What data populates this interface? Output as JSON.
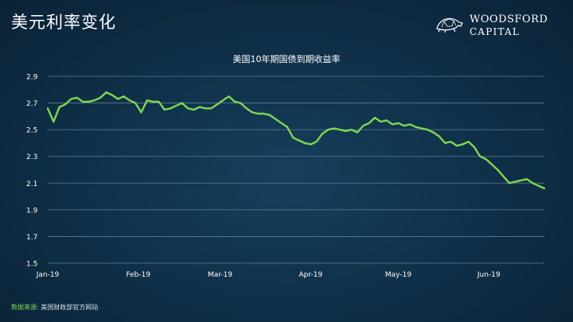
{
  "header": {
    "title": "美元利率变化"
  },
  "logo": {
    "name": "WOODSFORD",
    "sub": "CAPITAL"
  },
  "footer": {
    "source_label": "数据来源:",
    "source_text": "美国财政部官方网站"
  },
  "colors": {
    "line": "#7ed84e",
    "grid": "#5f7d92",
    "text": "#ffffff"
  },
  "chart_data": {
    "type": "line",
    "title": "美国10年期国债到期收益率",
    "xlabel": "",
    "ylabel": "",
    "ylim": [
      1.5,
      2.9
    ],
    "yticks": [
      "2.9",
      "2.7",
      "2.5",
      "2.3",
      "2.1",
      "1.9",
      "1.7",
      "1.5"
    ],
    "ytick_values": [
      2.9,
      2.7,
      2.5,
      2.3,
      2.1,
      1.9,
      1.7,
      1.5
    ],
    "xticks": [
      "Jan-19",
      "Feb-19",
      "Mar-19",
      "Apr-19",
      "May-19",
      "Jun-19"
    ],
    "xtick_positions": [
      0,
      31,
      59,
      90,
      120,
      151
    ],
    "xlim": [
      0,
      170
    ],
    "grid": true,
    "legend": "none",
    "series": [
      {
        "x": [
          0,
          2,
          4,
          6,
          8,
          10,
          12,
          14,
          16,
          18,
          20,
          22,
          24,
          26,
          28,
          30,
          32,
          34,
          36,
          38,
          40,
          42,
          44,
          46,
          48,
          50,
          52,
          54,
          56,
          58,
          60,
          62,
          64,
          66,
          68,
          70,
          72,
          74,
          76,
          78,
          80,
          82,
          84,
          86,
          88,
          90,
          92,
          94,
          96,
          98,
          100,
          102,
          104,
          106,
          108,
          110,
          112,
          114,
          116,
          118,
          120,
          122,
          124,
          126,
          128,
          130,
          132,
          134,
          136,
          138,
          140,
          142,
          144,
          146,
          148,
          150,
          152,
          154,
          156,
          158,
          160,
          162,
          164,
          166,
          168,
          170
        ],
        "values": [
          2.66,
          2.56,
          2.67,
          2.69,
          2.73,
          2.74,
          2.71,
          2.71,
          2.72,
          2.74,
          2.78,
          2.76,
          2.73,
          2.75,
          2.72,
          2.7,
          2.63,
          2.72,
          2.71,
          2.71,
          2.65,
          2.66,
          2.68,
          2.7,
          2.66,
          2.65,
          2.67,
          2.66,
          2.66,
          2.69,
          2.72,
          2.75,
          2.71,
          2.7,
          2.66,
          2.63,
          2.62,
          2.62,
          2.61,
          2.58,
          2.55,
          2.52,
          2.44,
          2.42,
          2.4,
          2.39,
          2.41,
          2.47,
          2.5,
          2.51,
          2.5,
          2.49,
          2.5,
          2.48,
          2.53,
          2.55,
          2.59,
          2.56,
          2.57,
          2.54,
          2.55,
          2.53,
          2.54,
          2.52,
          2.51,
          2.5,
          2.48,
          2.45,
          2.4,
          2.41,
          2.38,
          2.39,
          2.41,
          2.37,
          2.3,
          2.28,
          2.24,
          2.2,
          2.15,
          2.1,
          2.11,
          2.12,
          2.13,
          2.1,
          2.08,
          2.06
        ]
      }
    ]
  }
}
